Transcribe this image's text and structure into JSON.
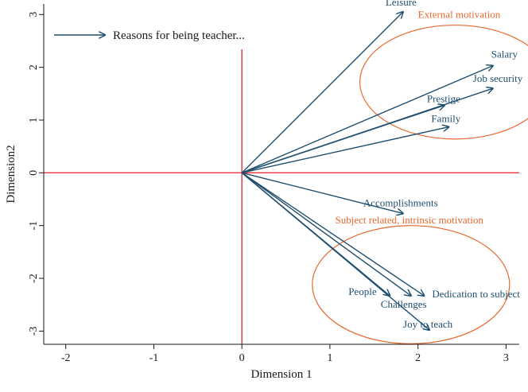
{
  "chart_data": {
    "type": "biplot-vectors",
    "xlabel": "Dimension 1",
    "ylabel": "Dimension2",
    "xlim": [
      -2.25,
      3.15
    ],
    "ylim": [
      -3.25,
      3.2
    ],
    "xticks": [
      -2,
      -1,
      0,
      1,
      2,
      3
    ],
    "yticks": [
      -3,
      -2,
      -1,
      0,
      1,
      2,
      3
    ],
    "legend": {
      "label": "Reasons for being teacher...",
      "position": "top-left"
    },
    "origin": [
      0,
      0
    ],
    "vectors": [
      {
        "label": "Leisure",
        "x": 1.83,
        "y": 3.05
      },
      {
        "label": "Salary",
        "x": 2.85,
        "y": 2.03
      },
      {
        "label": "Job security",
        "x": 2.85,
        "y": 1.6
      },
      {
        "label": "Prestige",
        "x": 2.3,
        "y": 1.28
      },
      {
        "label": "Family",
        "x": 2.35,
        "y": 0.87
      },
      {
        "label": "Accomplishments",
        "x": 1.83,
        "y": -0.77
      },
      {
        "label": "Dedication to subject",
        "x": 2.07,
        "y": -2.33
      },
      {
        "label": "People",
        "x": 1.68,
        "y": -2.33
      },
      {
        "label": "Challenges",
        "x": 1.92,
        "y": -2.33
      },
      {
        "label": "Joy to teach",
        "x": 2.13,
        "y": -2.98
      }
    ],
    "clusters": [
      {
        "label": "External motivation",
        "cx": 2.42,
        "cy": 1.72,
        "r": 1.08
      },
      {
        "label": "Subject related, intrinsic motivation",
        "cx": 1.92,
        "cy": -2.12,
        "r": 1.12
      }
    ],
    "reference_lines": {
      "x": 0,
      "y": 0
    },
    "colors": {
      "vector": "#1f4e6e",
      "reference": "#e8303a",
      "cluster": "#e8682e",
      "axis": "#1a1a1a"
    }
  }
}
